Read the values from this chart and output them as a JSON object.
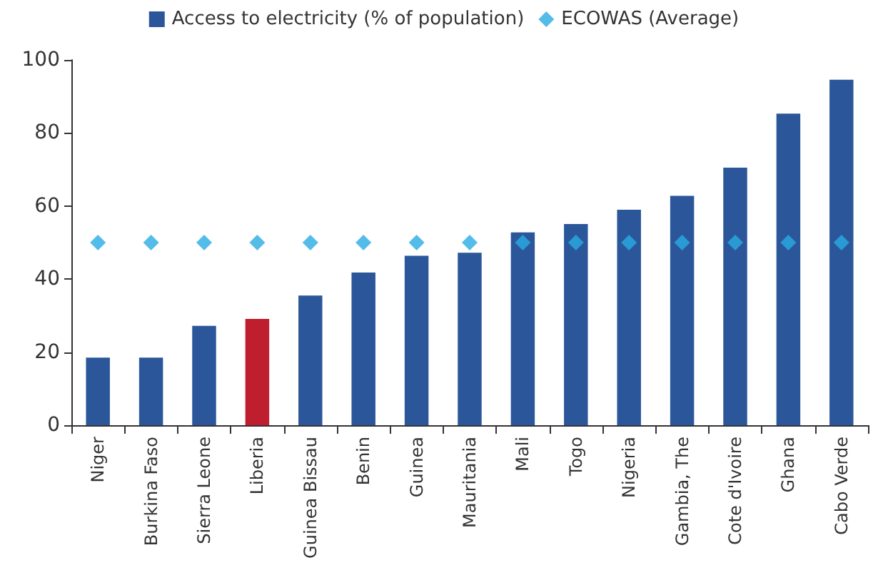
{
  "chart_data": {
    "type": "bar",
    "categories": [
      "Niger",
      "Burkina Faso",
      "Sierra Leone",
      "Liberia",
      "Guinea Bissau",
      "Benin",
      "Guinea",
      "Mauritania",
      "Mali",
      "Togo",
      "Nigeria",
      "Gambia, The",
      "Cote d'Ivoire",
      "Ghana",
      "Cabo Verde"
    ],
    "series": [
      {
        "name": "Access to electricity (% of population)",
        "color": "#2b579a",
        "colors": [
          "#2b579a",
          "#2b579a",
          "#2b579a",
          "#be1e2d",
          "#2b579a",
          "#2b579a",
          "#2b579a",
          "#2b579a",
          "#2b579a",
          "#2b579a",
          "#2b579a",
          "#2b579a",
          "#2b579a",
          "#2b579a",
          "#2b579a"
        ],
        "values": [
          18.5,
          18.5,
          27.2,
          29.1,
          35.5,
          41.8,
          46.4,
          47.2,
          52.8,
          55.1,
          59.0,
          62.8,
          70.5,
          85.3,
          94.6
        ]
      },
      {
        "name": "ECOWAS (Average)",
        "type": "scatter",
        "marker": "diamond",
        "color": "#29abe2",
        "values": [
          50,
          50,
          50,
          50,
          50,
          50,
          50,
          50,
          50,
          50,
          50,
          50,
          50,
          50,
          50
        ]
      }
    ],
    "ylim": [
      0,
      100
    ],
    "yticks": [
      0,
      20,
      40,
      60,
      80,
      100
    ],
    "grid": false,
    "legend": "top"
  }
}
